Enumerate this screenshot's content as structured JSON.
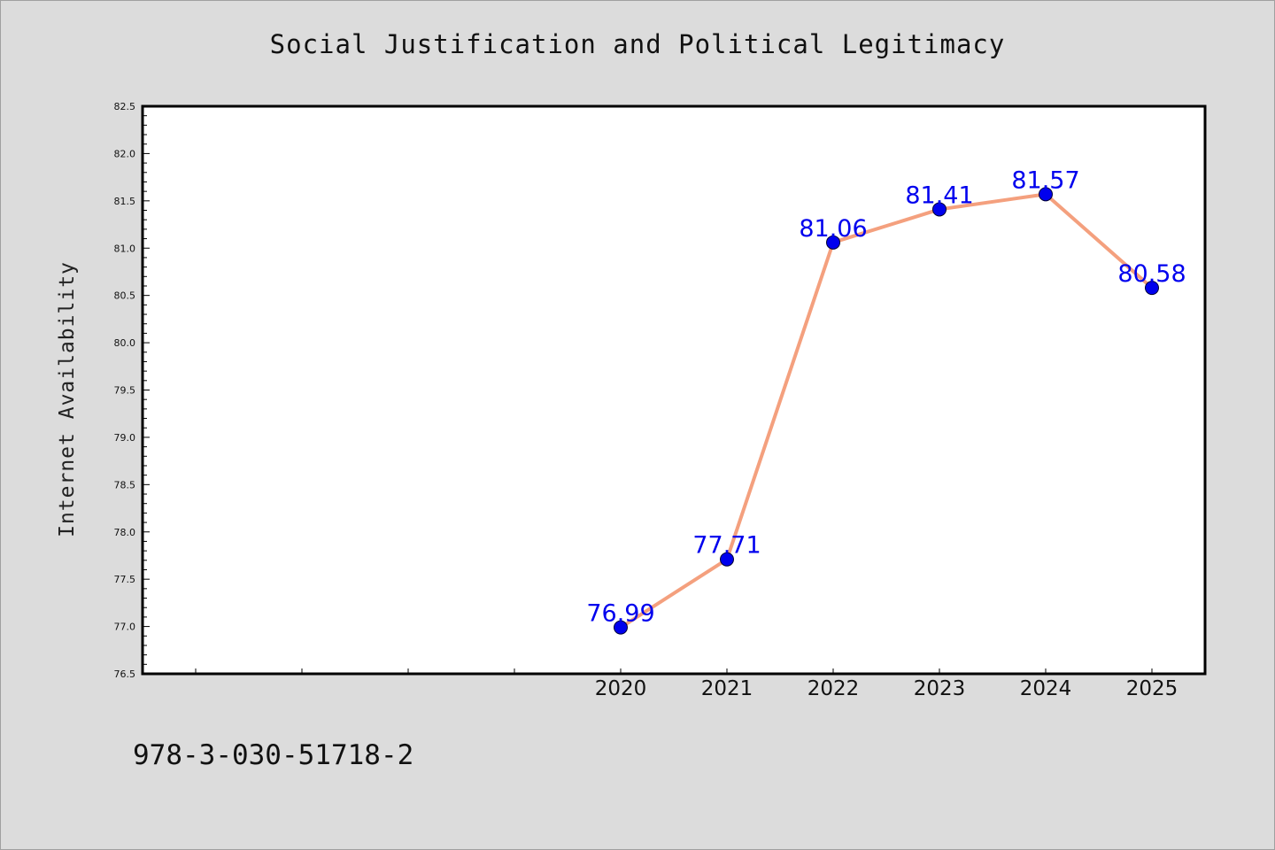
{
  "chart_data": {
    "type": "line",
    "title": "Social Justification and Political Legitimacy",
    "xlabel": "",
    "ylabel": "Internet Availability",
    "x": [
      2020,
      2021,
      2022,
      2023,
      2024,
      2025
    ],
    "x_tick_labels": [
      "2020",
      "2021",
      "2022",
      "2023",
      "2024",
      "2025"
    ],
    "x_range": [
      2015.5,
      2025.5
    ],
    "series": [
      {
        "values": [
          76.99,
          77.71,
          81.06,
          81.41,
          81.57,
          80.58
        ],
        "labels": [
          "76.99",
          "77.71",
          "81.06",
          "81.41",
          "81.57",
          "80.58"
        ],
        "line_color": "#f4a07e",
        "marker_color": "#0000ee"
      }
    ],
    "ylim": [
      76.5,
      82.5
    ],
    "y_ticks": [
      "76.5",
      "77.0",
      "77.5",
      "78.0",
      "78.5",
      "79.0",
      "79.5",
      "80.0",
      "80.5",
      "81.0",
      "81.5",
      "82.0",
      "82.5"
    ],
    "grid": false,
    "legend": "none"
  },
  "footer": {
    "code": "978-3-030-51718-2"
  }
}
